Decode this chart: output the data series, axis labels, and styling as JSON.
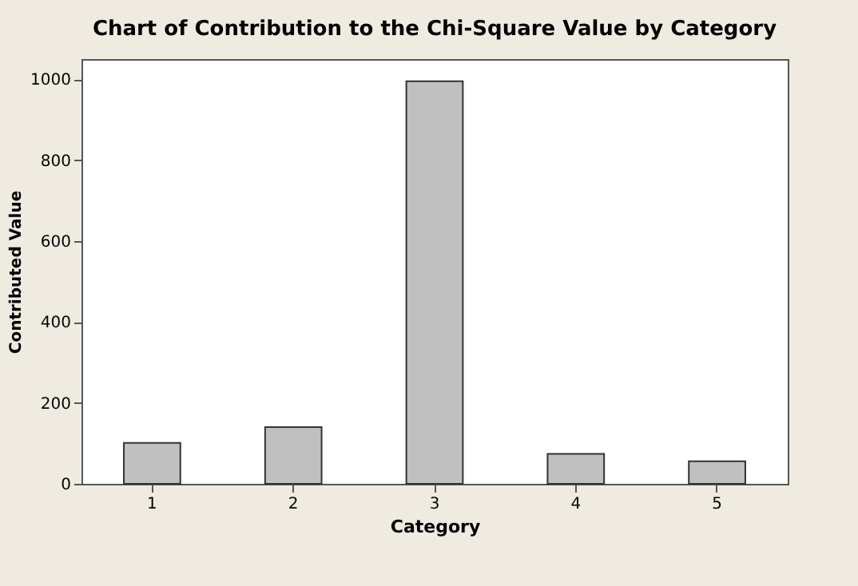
{
  "chart_data": {
    "type": "bar",
    "title": "Chart of Contribution to the Chi-Square Value by Category",
    "xlabel": "Category",
    "ylabel": "Contributed Value",
    "categories": [
      "1",
      "2",
      "3",
      "4",
      "5"
    ],
    "values": [
      101,
      140,
      995,
      74,
      56
    ],
    "color": "#c0c0c0",
    "ylim": [
      0,
      1050
    ],
    "yticks": [
      0,
      200,
      400,
      600,
      800,
      1000
    ],
    "grid": false
  }
}
